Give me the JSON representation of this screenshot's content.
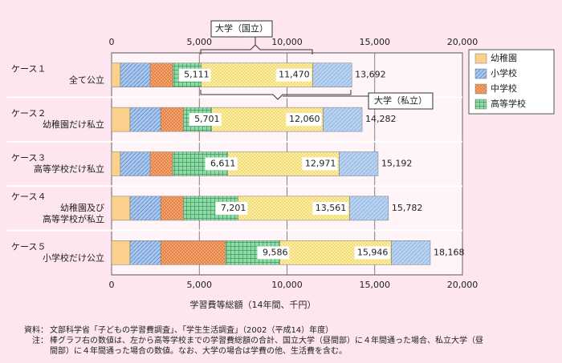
{
  "chart_data": {
    "type": "stacked-bar",
    "categories": [
      [
        "ケース１",
        "全て公立"
      ],
      [
        "ケース２",
        "幼稚園だけ私立"
      ],
      [
        "ケース３",
        "高等学校だけ私立"
      ],
      [
        "ケース４",
        "幼稚園及び",
        "高等学校が私立"
      ],
      [
        "ケース５",
        "小学校だけ公立"
      ]
    ],
    "series": [
      {
        "name": "幼稚園",
        "color": "#fbd08c",
        "values": [
          500,
          1050,
          500,
          1050,
          1050
        ]
      },
      {
        "name": "小学校",
        "color": "#a9c8ee",
        "values": [
          1700,
          1750,
          1700,
          1750,
          1750
        ]
      },
      {
        "name": "中学校",
        "color": "#f6a46a",
        "values": [
          1300,
          1300,
          1280,
          1300,
          3700
        ]
      },
      {
        "name": "高等学校",
        "color": "#8fdaa6",
        "values": [
          1611,
          1601,
          3131,
          3101,
          3086
        ]
      }
    ],
    "school_totals": [
      5111,
      5701,
      6611,
      7201,
      9586
    ],
    "school_total_labels": [
      "5,111",
      "5,701",
      "6,611",
      "7,201",
      "9,586"
    ],
    "university_national": {
      "name": "大学（国立）",
      "color": "#fff0a0",
      "totals": [
        11470,
        12060,
        12971,
        13561,
        15946
      ],
      "value_labels": [
        "11,470",
        "12,060",
        "12,971",
        "13,561",
        "15,946"
      ]
    },
    "university_private": {
      "name": "大学（私立）",
      "color": "#b9d2f2",
      "totals": [
        13692,
        14282,
        15192,
        15782,
        18168
      ],
      "value_labels": [
        "13,692",
        "14,282",
        "15,192",
        "15,782",
        "18,168"
      ]
    },
    "xlim": [
      0,
      20000
    ],
    "xticks": [
      0,
      {
        "value": 5000,
        "label": "5,000"
      },
      {
        "value": 10000,
        "label": "10,000"
      },
      {
        "value": 15000,
        "label": "15,000"
      },
      {
        "value": 20000,
        "label": "20,000"
      }
    ],
    "xlabel": "学習費等総額（14年間、千円）",
    "grid": true,
    "legend": "right",
    "source_label": "資料：",
    "source": "文部科学省「子どもの学習費調査」、「学生生活調査」（2002（平成14）年度）",
    "note_label": "注：",
    "note_lines": [
      "棒グラフ右の数値は、左から高等学校までの学習費総額の合計、国立大学（昼間部）に４年間通った場合、私立大学（昼",
      "間部）に４年間通った場合の数値。なお、大学の場合は学費の他、生活費を含む。"
    ]
  }
}
